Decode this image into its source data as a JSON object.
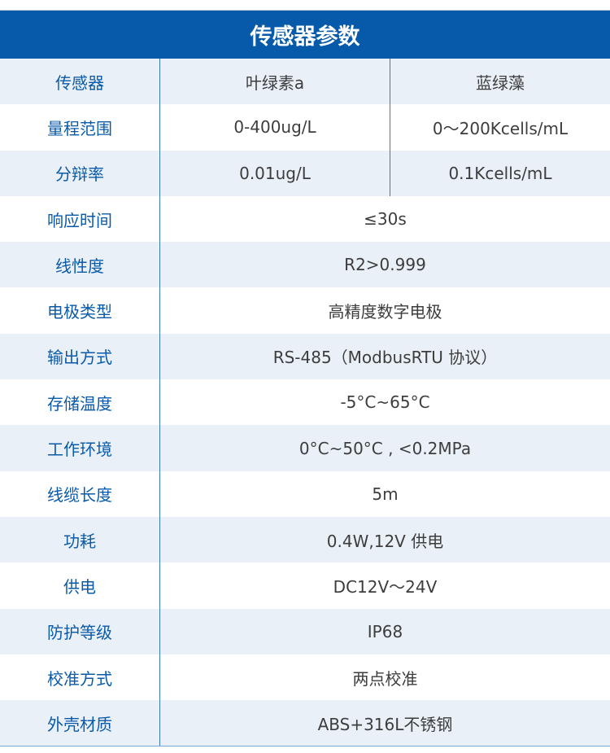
{
  "title": "传感器参数",
  "colors": {
    "header_bg": "#075aa9",
    "label_text": "#0b5aa8",
    "alt_row_bg": "#e9f0f8"
  },
  "rows": [
    {
      "label": "传感器",
      "values": [
        "叶绿素a",
        "蓝绿藻"
      ]
    },
    {
      "label": "量程范围",
      "values": [
        "0-400ug/L",
        "0～200Kcells/mL"
      ]
    },
    {
      "label": "分辩率",
      "values": [
        "0.01ug/L",
        "0.1Kcells/mL"
      ]
    },
    {
      "label": "响应时间",
      "values": [
        "≤30s"
      ]
    },
    {
      "label": "线性度",
      "values": [
        "R2>0.999"
      ]
    },
    {
      "label": "电极类型",
      "values": [
        "高精度数字电极"
      ]
    },
    {
      "label": "输出方式",
      "values": [
        "RS-485（ModbusRTU 协议）"
      ]
    },
    {
      "label": "存储温度",
      "values": [
        "-5°C~65°C"
      ]
    },
    {
      "label": "工作环境",
      "values": [
        "0°C~50°C , <0.2MPa"
      ]
    },
    {
      "label": "线缆长度",
      "values": [
        "5m"
      ]
    },
    {
      "label": "功耗",
      "values": [
        "0.4W,12V 供电"
      ]
    },
    {
      "label": "供电",
      "values": [
        "DC12V～24V"
      ]
    },
    {
      "label": "防护等级",
      "values": [
        "IP68"
      ]
    },
    {
      "label": "校准方式",
      "values": [
        "两点校准"
      ]
    },
    {
      "label": "外壳材质",
      "values": [
        "ABS+316L不锈钢"
      ]
    }
  ]
}
